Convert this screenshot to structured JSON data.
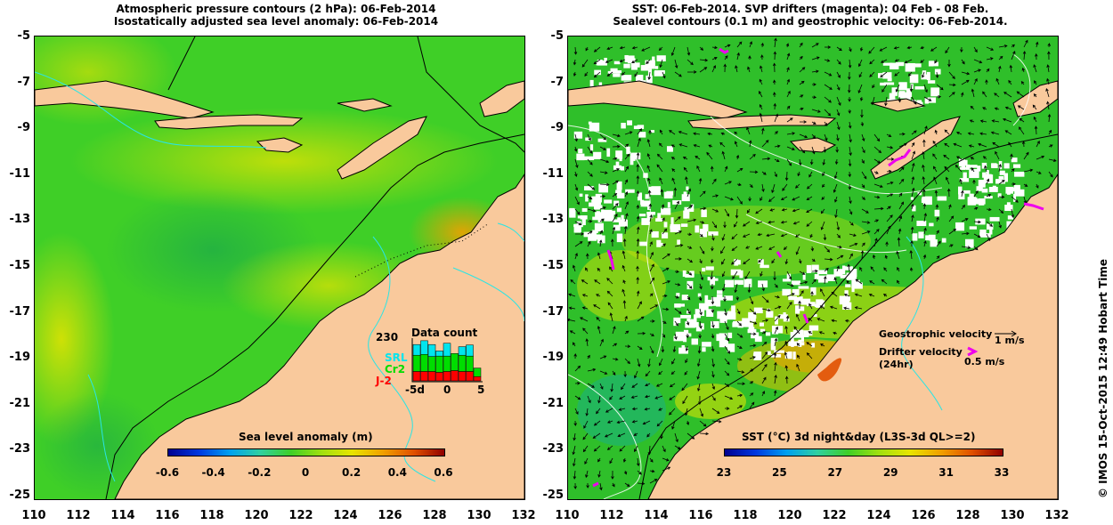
{
  "left_panel": {
    "title_line1": "Atmospheric pressure contours (2 hPa): 06-Feb-2014",
    "title_line2": "Isostatically adjusted sea level anomaly: 06-Feb-2014",
    "colorbar": {
      "label": "Sea level anomaly (m)",
      "ticks": [
        "-0.6",
        "-0.4",
        "-0.2",
        "0",
        "0.2",
        "0.4",
        "0.6"
      ],
      "range": [
        -0.6,
        0.6
      ]
    },
    "data_count": {
      "title": "Data count",
      "max_label": "230",
      "legend": [
        {
          "name": "SRL",
          "color": "#00e5ee"
        },
        {
          "name": "Cr2",
          "color": "#00dd00"
        },
        {
          "name": "J-2",
          "color": "#ff0000"
        }
      ],
      "x_ticks": [
        "-5d",
        "0",
        "5"
      ],
      "bars": [
        {
          "j2": 0.22,
          "cr2": 0.38,
          "srl": 0.25
        },
        {
          "j2": 0.22,
          "cr2": 0.4,
          "srl": 0.32
        },
        {
          "j2": 0.22,
          "cr2": 0.35,
          "srl": 0.28
        },
        {
          "j2": 0.2,
          "cr2": 0.38,
          "srl": 0.12
        },
        {
          "j2": 0.22,
          "cr2": 0.36,
          "srl": 0.3
        },
        {
          "j2": 0.24,
          "cr2": 0.4,
          "srl": 0.0
        },
        {
          "j2": 0.22,
          "cr2": 0.38,
          "srl": 0.2
        },
        {
          "j2": 0.22,
          "cr2": 0.36,
          "srl": 0.26
        },
        {
          "j2": 0.1,
          "cr2": 0.2,
          "srl": 0.0
        }
      ]
    }
  },
  "right_panel": {
    "title_line1": "SST: 06-Feb-2014. SVP drifters (magenta): 04 Feb - 08 Feb.",
    "title_line2": "Sealevel contours (0.1 m) and geostrophic velocity: 06-Feb-2014.",
    "colorbar": {
      "label": "SST (°C) 3d night&day (L3S-3d QL>=2)",
      "ticks": [
        "23",
        "25",
        "27",
        "29",
        "31",
        "33"
      ],
      "range": [
        23,
        33
      ]
    },
    "geostrophic_label": "Geostrophic velocity",
    "geostrophic_scale": "1 m/s",
    "drifter_label_1": "Drifter velocity",
    "drifter_label_2": "(24hr)",
    "drifter_scale": "0.5 m/s"
  },
  "axes": {
    "y_ticks": [
      "-5",
      "-7",
      "-9",
      "-11",
      "-13",
      "-15",
      "-17",
      "-19",
      "-21",
      "-23",
      "-25"
    ],
    "x_ticks": [
      "110",
      "112",
      "114",
      "116",
      "118",
      "120",
      "122",
      "124",
      "126",
      "128",
      "130",
      "132"
    ],
    "lat_range": [
      -25,
      -5
    ],
    "lon_range": [
      110,
      132
    ]
  },
  "credit": "© IMOS 15-Oct-2015 12:49 Hobart Time",
  "colors": {
    "land": "#f9c99c",
    "coast": "#000000",
    "sla_background": "#3fcf27",
    "sst_background": "#2fbf2a",
    "drifter": "#ee00ee"
  }
}
